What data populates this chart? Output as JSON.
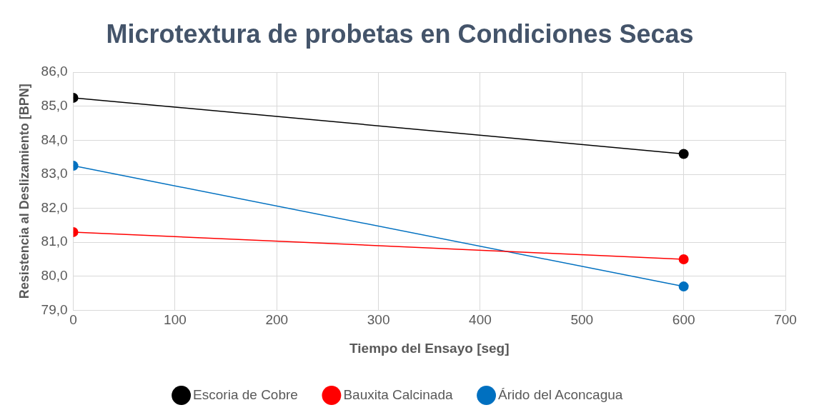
{
  "chart_data": {
    "type": "line",
    "title": "Microtextura de probetas en Condiciones Secas",
    "xlabel": "Tiempo del Ensayo [seg]",
    "ylabel": "Resistencia al Deslizamiento [BPN]",
    "x": [
      0,
      600
    ],
    "series": [
      {
        "name": "Escoria de Cobre",
        "color": "#000000",
        "values": [
          85.25,
          83.6
        ]
      },
      {
        "name": "Bauxita Calcinada",
        "color": "#ff0000",
        "values": [
          81.3,
          80.5
        ]
      },
      {
        "name": "Árido del Aconcagua",
        "color": "#0070c0",
        "values": [
          83.25,
          79.7
        ]
      }
    ],
    "xlim": [
      0,
      700
    ],
    "xticks": [
      0,
      100,
      200,
      300,
      400,
      500,
      600,
      700
    ],
    "ylim": [
      79,
      86
    ],
    "yticks": [
      {
        "value": 79,
        "label": "79,0"
      },
      {
        "value": 80,
        "label": "80,0"
      },
      {
        "value": 81,
        "label": "81,0"
      },
      {
        "value": 82,
        "label": "82,0"
      },
      {
        "value": 83,
        "label": "83,0"
      },
      {
        "value": 84,
        "label": "84,0"
      },
      {
        "value": 85,
        "label": "85,0"
      },
      {
        "value": 86,
        "label": "86,0"
      }
    ],
    "grid": true,
    "legend": "bottom",
    "marker": "circle",
    "line_style": "solid"
  }
}
